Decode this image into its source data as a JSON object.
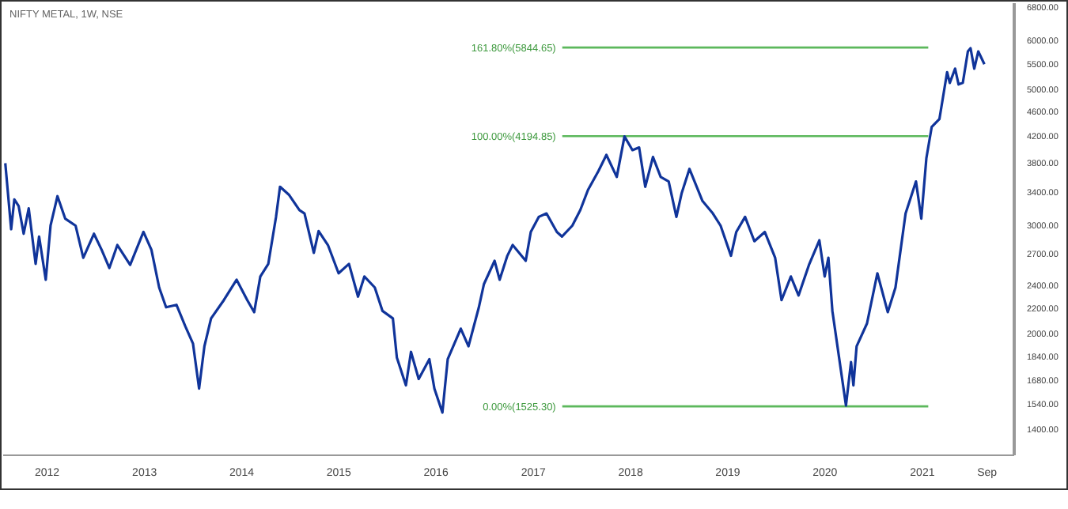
{
  "chart_data": {
    "type": "line",
    "title": "NIFTY METAL, 1W, NSE",
    "x": [
      "2011-07-28",
      "2011-08-19",
      "2011-08-31",
      "2011-09-16",
      "2011-10-05",
      "2011-10-24",
      "2011-11-19",
      "2011-12-02",
      "2011-12-27",
      "2012-01-14",
      "2012-02-09",
      "2012-03-09",
      "2012-04-17",
      "2012-05-16",
      "2012-06-25",
      "2012-07-24",
      "2012-08-22",
      "2012-09-21",
      "2012-11-08",
      "2012-12-28",
      "2013-01-27",
      "2013-02-25",
      "2013-03-23",
      "2013-05-01",
      "2013-06-03",
      "2013-07-02",
      "2013-07-25",
      "2013-08-14",
      "2013-09-08",
      "2013-10-26",
      "2013-12-13",
      "2014-01-22",
      "2014-02-17",
      "2014-03-12",
      "2014-04-11",
      "2014-05-10",
      "2014-05-25",
      "2014-06-27",
      "2014-08-06",
      "2014-08-25",
      "2014-09-29",
      "2014-10-17",
      "2014-11-21",
      "2014-12-31",
      "2015-02-08",
      "2015-03-14",
      "2015-04-07",
      "2015-05-16",
      "2015-06-14",
      "2015-07-23",
      "2015-08-07",
      "2015-09-10",
      "2015-09-29",
      "2015-10-28",
      "2015-12-07",
      "2015-12-26",
      "2016-01-25",
      "2016-02-14",
      "2016-04-03",
      "2016-05-02",
      "2016-06-10",
      "2016-06-29",
      "2016-08-08",
      "2016-08-27",
      "2016-09-25",
      "2016-10-15",
      "2016-12-03",
      "2016-12-22",
      "2017-01-21",
      "2017-02-19",
      "2017-03-30",
      "2017-04-18",
      "2017-05-27",
      "2017-06-26",
      "2017-07-25",
      "2017-09-02",
      "2017-10-02",
      "2017-11-10",
      "2017-12-09",
      "2018-01-08",
      "2018-02-02",
      "2018-02-25",
      "2018-03-26",
      "2018-04-24",
      "2018-05-24",
      "2018-06-22",
      "2018-07-12",
      "2018-08-10",
      "2018-09-28",
      "2018-11-06",
      "2018-12-05",
      "2019-01-13",
      "2019-02-02",
      "2019-03-07",
      "2019-04-11",
      "2019-05-20",
      "2019-06-28",
      "2019-07-22",
      "2019-08-26",
      "2019-09-24",
      "2019-11-02",
      "2019-12-11",
      "2019-12-31",
      "2020-01-14",
      "2020-01-29",
      "2020-03-20",
      "2020-04-08",
      "2020-04-17",
      "2020-04-29",
      "2020-06-07",
      "2020-07-16",
      "2020-08-24",
      "2020-09-22",
      "2020-10-30",
      "2020-12-08",
      "2020-12-28",
      "2021-01-16",
      "2021-02-05",
      "2021-03-06",
      "2021-04-04",
      "2021-04-14",
      "2021-05-04",
      "2021-05-17",
      "2021-06-02",
      "2021-06-21",
      "2021-07-01",
      "2021-07-15",
      "2021-07-30",
      "2021-08-22"
    ],
    "series": [
      {
        "color": "#10349a",
        "values": [
          3790,
          2960,
          3310,
          3230,
          2910,
          3200,
          2600,
          2880,
          2450,
          3000,
          3350,
          3080,
          3000,
          2660,
          2910,
          2740,
          2560,
          2790,
          2590,
          2930,
          2740,
          2380,
          2210,
          2230,
          2060,
          1930,
          1630,
          1910,
          2120,
          2270,
          2450,
          2270,
          2170,
          2480,
          2600,
          3100,
          3470,
          3370,
          3180,
          3140,
          2710,
          2940,
          2790,
          2510,
          2600,
          2300,
          2480,
          2380,
          2180,
          2120,
          1830,
          1650,
          1870,
          1690,
          1820,
          1630,
          1490,
          1820,
          2040,
          1910,
          2210,
          2410,
          2630,
          2450,
          2680,
          2790,
          2630,
          2930,
          3100,
          3140,
          2930,
          2880,
          3000,
          3180,
          3430,
          3680,
          3910,
          3600,
          4190,
          3980,
          4020,
          3470,
          3880,
          3600,
          3540,
          3100,
          3390,
          3710,
          3290,
          3140,
          3000,
          2680,
          2930,
          3100,
          2830,
          2930,
          2660,
          2270,
          2480,
          2310,
          2590,
          2840,
          2480,
          2660,
          2180,
          1530,
          1800,
          1650,
          1910,
          2080,
          2510,
          2170,
          2380,
          3140,
          3540,
          3080,
          3860,
          4340,
          4470,
          5330,
          5120,
          5400,
          5090,
          5120,
          5760,
          5830,
          5400,
          5760,
          5490
        ]
      }
    ],
    "xlim": [
      "2011-07-20",
      "2021-12-12"
    ],
    "xticks": [
      {
        "value": "2012-01-01",
        "label": "2012"
      },
      {
        "value": "2013-01-01",
        "label": "2013"
      },
      {
        "value": "2014-01-01",
        "label": "2014"
      },
      {
        "value": "2015-01-01",
        "label": "2015"
      },
      {
        "value": "2016-01-01",
        "label": "2016"
      },
      {
        "value": "2017-01-01",
        "label": "2017"
      },
      {
        "value": "2018-01-01",
        "label": "2018"
      },
      {
        "value": "2019-01-01",
        "label": "2019"
      },
      {
        "value": "2020-01-01",
        "label": "2020"
      },
      {
        "value": "2021-01-01",
        "label": "2021"
      },
      {
        "value": "2021-09-01",
        "label": "Sep"
      }
    ],
    "ylim": [
      1270,
      6900
    ],
    "yticks": [
      {
        "value": 1400,
        "label": "1400.00"
      },
      {
        "value": 1540,
        "label": "1540.00"
      },
      {
        "value": 1680,
        "label": "1680.00"
      },
      {
        "value": 1840,
        "label": "1840.00"
      },
      {
        "value": 2000,
        "label": "2000.00"
      },
      {
        "value": 2200,
        "label": "2200.00"
      },
      {
        "value": 2400,
        "label": "2400.00"
      },
      {
        "value": 2700,
        "label": "2700.00"
      },
      {
        "value": 3000,
        "label": "3000.00"
      },
      {
        "value": 3400,
        "label": "3400.00"
      },
      {
        "value": 3800,
        "label": "3800.00"
      },
      {
        "value": 4200,
        "label": "4200.00"
      },
      {
        "value": 4600,
        "label": "4600.00"
      },
      {
        "value": 5000,
        "label": "5000.00"
      },
      {
        "value": 5500,
        "label": "5500.00"
      },
      {
        "value": 6000,
        "label": "6000.00"
      },
      {
        "value": 6800,
        "label": "6800.00"
      }
    ],
    "log": "y",
    "grid": false,
    "legend": false,
    "ref_lines": [
      {
        "axis": "y",
        "value": 5844.65,
        "label": "161.80%(5844.65)",
        "color": "#5cb85c"
      },
      {
        "axis": "y",
        "value": 4194.85,
        "label": "100.00%(4194.85)",
        "color": "#5cb85c"
      },
      {
        "axis": "y",
        "value": 1525.3,
        "label": "0.00%(1525.30)",
        "color": "#5cb85c"
      }
    ]
  }
}
